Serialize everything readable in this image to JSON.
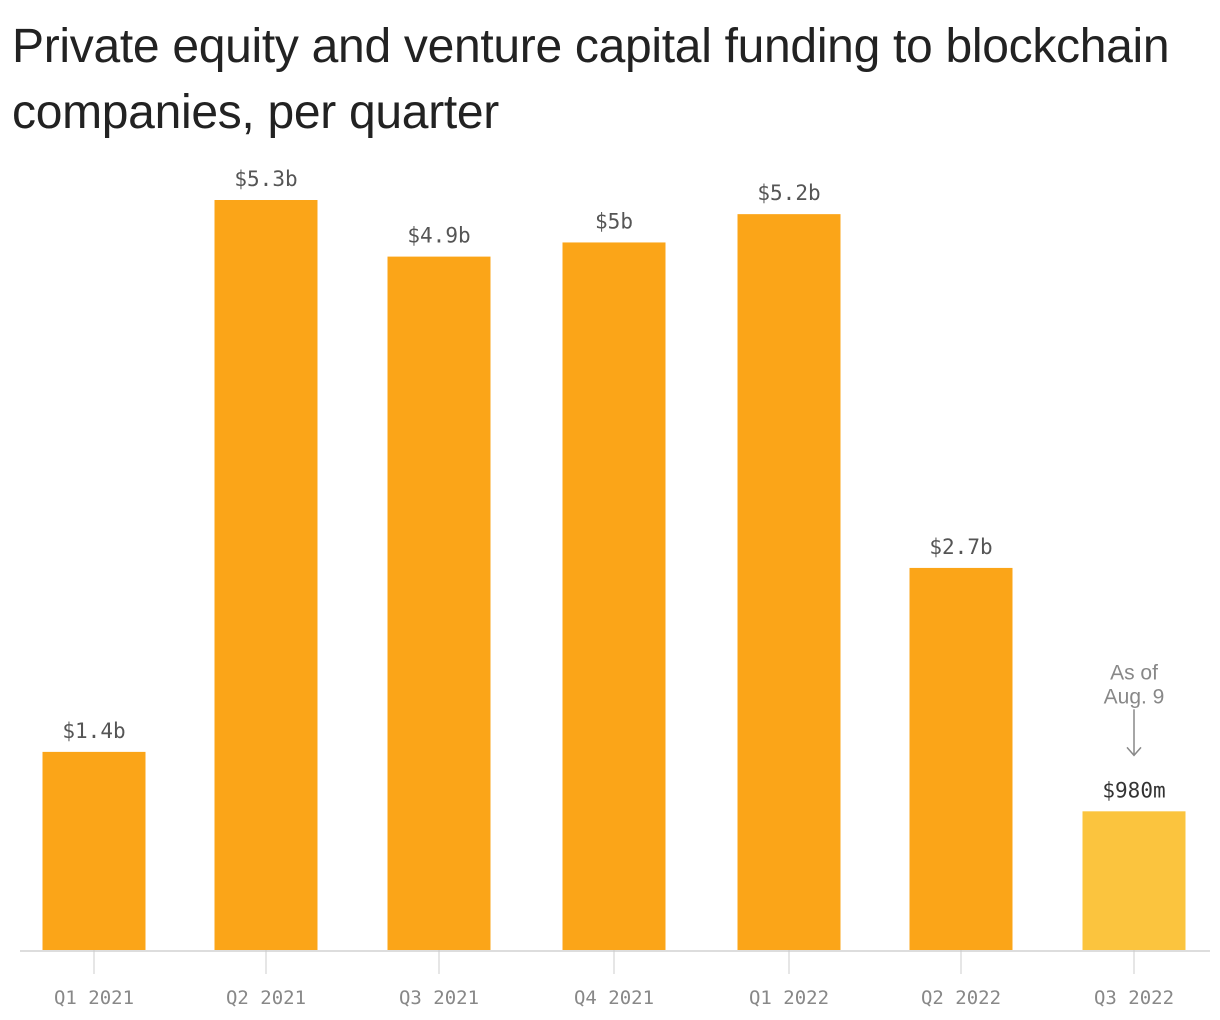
{
  "chart_data": {
    "type": "bar",
    "title": "Private equity and venture capital funding to blockchain companies, per quarter",
    "xlabel": "",
    "ylabel": "",
    "unit": "USD",
    "categories": [
      "Q1 2021",
      "Q2 2021",
      "Q3 2021",
      "Q4 2021",
      "Q1 2022",
      "Q2 2022",
      "Q3 2022"
    ],
    "values": [
      1.4,
      5.3,
      4.9,
      5.0,
      5.2,
      2.7,
      0.98
    ],
    "value_labels": [
      "$1.4b",
      "$5.3b",
      "$4.9b",
      "$5b",
      "$5.2b",
      "$2.7b",
      "$980m"
    ],
    "ylim": [
      0,
      5.3
    ],
    "grid": false,
    "legend": "none",
    "colors": {
      "bar": "#FBA518",
      "bar_partial": "#FBC43E",
      "axis": "#dddddd",
      "tick": "#cccccc"
    },
    "highlight_index": 6,
    "annotation": {
      "lines": [
        "As of",
        "Aug. 9"
      ],
      "category_index": 6,
      "color": "#888888"
    }
  }
}
